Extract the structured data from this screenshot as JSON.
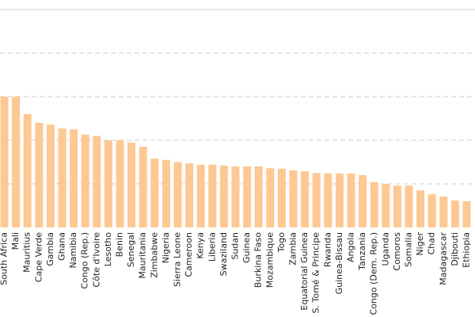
{
  "chart_data": {
    "type": "bar",
    "categories": [
      "South Africa",
      "Mali",
      "Mauritius",
      "Cape Verde",
      "Gambia",
      "Ghana",
      "Namibia",
      "Congo (Rep.)",
      "Côte d'Ivoire",
      "Lesotho",
      "Benin",
      "Senegal",
      "Mauritania",
      "Zimbabwe",
      "Nigeria",
      "Sierra Leone",
      "Cameroon",
      "Kenya",
      "Liberia",
      "Swaziland",
      "Sudan",
      "Guinea",
      "Burkina Faso",
      "Mozambique",
      "Togo",
      "Zambia",
      "Equatorial Guinea",
      "S. Tomé & Principe",
      "Rwanda",
      "Guinea-Bissau",
      "Angola",
      "Tanzania",
      "Congo (Dem. Rep.)",
      "Uganda",
      "Comoros",
      "Somalia",
      "Niger",
      "Chad",
      "Madagascar",
      "Djibouti",
      "Ethiopia"
    ],
    "values": [
      3.0,
      3.0,
      2.6,
      2.4,
      2.36,
      2.27,
      2.25,
      2.13,
      2.1,
      2.0,
      2.0,
      1.95,
      1.85,
      1.58,
      1.55,
      1.5,
      1.47,
      1.44,
      1.44,
      1.42,
      1.4,
      1.4,
      1.4,
      1.36,
      1.35,
      1.31,
      1.29,
      1.25,
      1.24,
      1.24,
      1.24,
      1.2,
      1.04,
      1.0,
      0.96,
      0.96,
      0.85,
      0.76,
      0.71,
      0.62,
      0.6
    ],
    "color": "#fdc893",
    "ylim": [
      0,
      5
    ],
    "yticks": [
      1,
      2,
      3,
      4
    ],
    "grid": true
  }
}
